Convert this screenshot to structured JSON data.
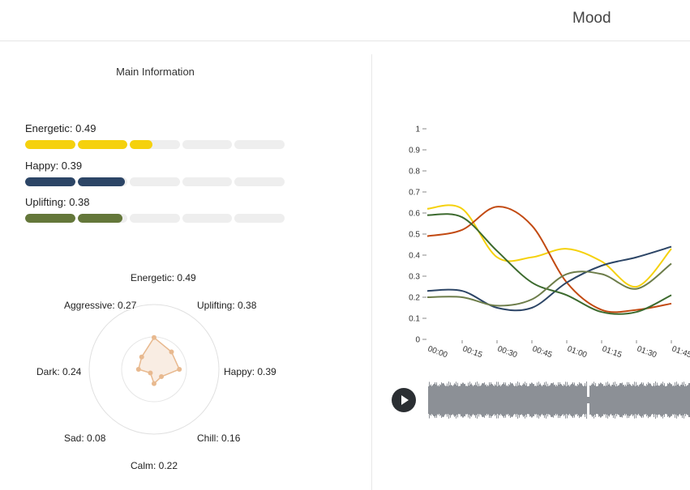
{
  "header": {
    "title": "Mood"
  },
  "main_info": {
    "title": "Main Information",
    "bars": [
      {
        "label": "Energetic: 0.49",
        "value": 0.49,
        "color": "#f5d10d"
      },
      {
        "label": "Happy: 0.39",
        "value": 0.39,
        "color": "#2c4566"
      },
      {
        "label": "Uplifting: 0.38",
        "value": 0.38,
        "color": "#64773a"
      }
    ],
    "segments": 5
  },
  "radar": {
    "fill_color": "#e8b98f",
    "axes": [
      {
        "label": "Energetic: 0.49",
        "value": 0.49
      },
      {
        "label": "Uplifting: 0.38",
        "value": 0.38
      },
      {
        "label": "Happy: 0.39",
        "value": 0.39
      },
      {
        "label": "Chill: 0.16",
        "value": 0.16
      },
      {
        "label": "Calm: 0.22",
        "value": 0.22
      },
      {
        "label": "Sad: 0.08",
        "value": 0.08
      },
      {
        "label": "Dark: 0.24",
        "value": 0.24
      },
      {
        "label": "Aggressive: 0.27",
        "value": 0.27
      }
    ]
  },
  "chart_data": {
    "type": "line",
    "ylim": [
      0,
      1
    ],
    "yticks": [
      "0",
      "0.1",
      "0.2",
      "0.3",
      "0.4",
      "0.5",
      "0.6",
      "0.7",
      "0.8",
      "0.9",
      "1"
    ],
    "x": [
      "00:00",
      "00:15",
      "00:30",
      "00:45",
      "01:00",
      "01:15",
      "01:30",
      "01:45"
    ],
    "series": [
      {
        "color": "#f5d10d",
        "values": [
          0.62,
          0.62,
          0.39,
          0.39,
          0.43,
          0.37,
          0.25,
          0.43
        ]
      },
      {
        "color": "#c24a12",
        "values": [
          0.49,
          0.52,
          0.63,
          0.54,
          0.27,
          0.14,
          0.14,
          0.17
        ]
      },
      {
        "color": "#2c4566",
        "values": [
          0.23,
          0.23,
          0.15,
          0.15,
          0.27,
          0.35,
          0.39,
          0.44
        ]
      },
      {
        "color": "#3c6a2e",
        "values": [
          0.59,
          0.58,
          0.42,
          0.27,
          0.21,
          0.13,
          0.13,
          0.21
        ]
      },
      {
        "color": "#6d7d4a",
        "values": [
          0.2,
          0.2,
          0.16,
          0.19,
          0.31,
          0.31,
          0.24,
          0.36
        ]
      }
    ]
  },
  "player": {
    "waveform_color": "#8c9096"
  }
}
